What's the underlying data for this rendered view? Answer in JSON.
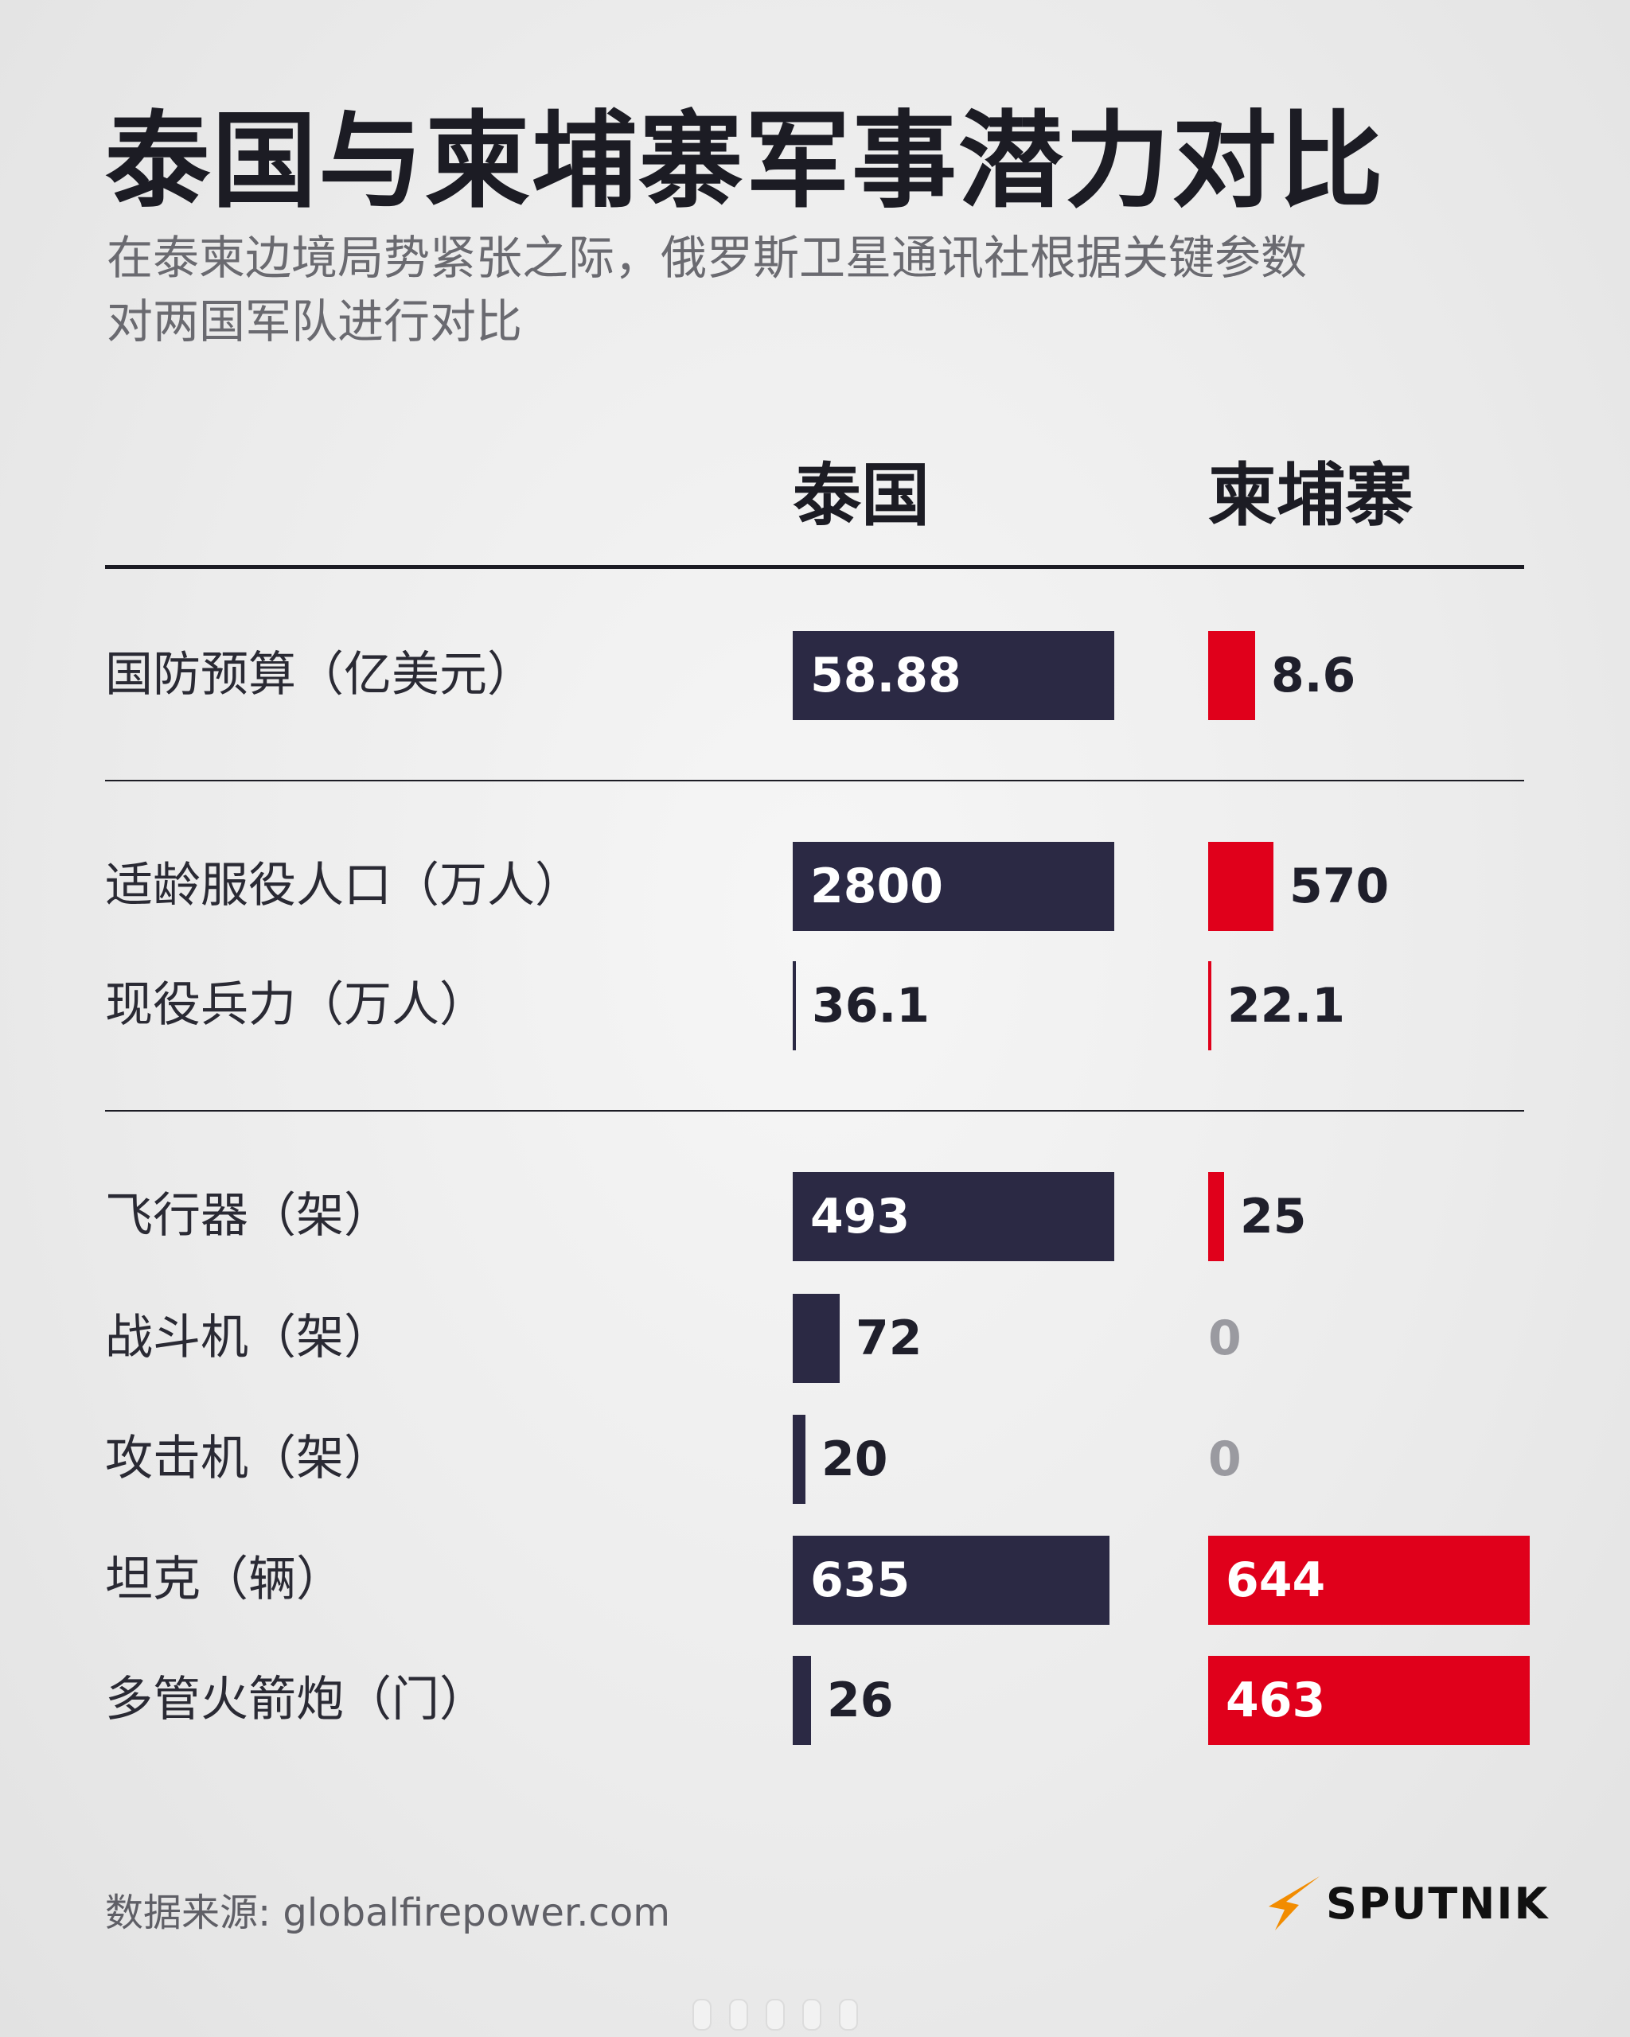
{
  "title": "泰国与柬埔寨军事潜力对比",
  "subtitle": "在泰柬边境局势紧张之际，俄罗斯卫星通讯社根据关键参数对两国军队进行对比",
  "source": "数据来源: globalfirepower.com",
  "brand": "SPUTNIK",
  "colors": {
    "thailand": "#2b2944",
    "cambodia": "#e0001b",
    "zero_value": "#9a9aa0"
  },
  "chart_data": {
    "type": "bar",
    "orientation": "horizontal",
    "series": [
      {
        "name": "泰国",
        "color": "#2b2944"
      },
      {
        "name": "柬埔寨",
        "color": "#e0001b"
      }
    ],
    "rows": [
      {
        "label": "国防预算（亿美元）",
        "thailand": "58.88",
        "cambodia": "8.6",
        "th_num": 58.88,
        "kh_num": 8.6,
        "scale_max": 58.88
      },
      {
        "label": "适龄服役人口（万人）",
        "thailand": "2800",
        "cambodia": "570",
        "th_num": 2800,
        "kh_num": 570,
        "scale_max": 2800
      },
      {
        "label": "现役兵力（万人）",
        "thailand": "36.1",
        "cambodia": "22.1",
        "th_num": 36.1,
        "kh_num": 22.1,
        "scale_max": 2800
      },
      {
        "label": "飞行器（架）",
        "thailand": "493",
        "cambodia": "25",
        "th_num": 493,
        "kh_num": 25,
        "scale_max": 493
      },
      {
        "label": "战斗机（架）",
        "thailand": "72",
        "cambodia": "0",
        "th_num": 72,
        "kh_num": 0,
        "scale_max": 493
      },
      {
        "label": "攻击机（架）",
        "thailand": "20",
        "cambodia": "0",
        "th_num": 20,
        "kh_num": 0,
        "scale_max": 493
      },
      {
        "label": "坦克（辆）",
        "thailand": "635",
        "cambodia": "644",
        "th_num": 635,
        "kh_num": 644,
        "scale_max": 644
      },
      {
        "label": "多管火箭炮（门）",
        "thailand": "26",
        "cambodia": "463",
        "th_num": 26,
        "kh_num": 463,
        "scale_max": 463
      }
    ]
  }
}
